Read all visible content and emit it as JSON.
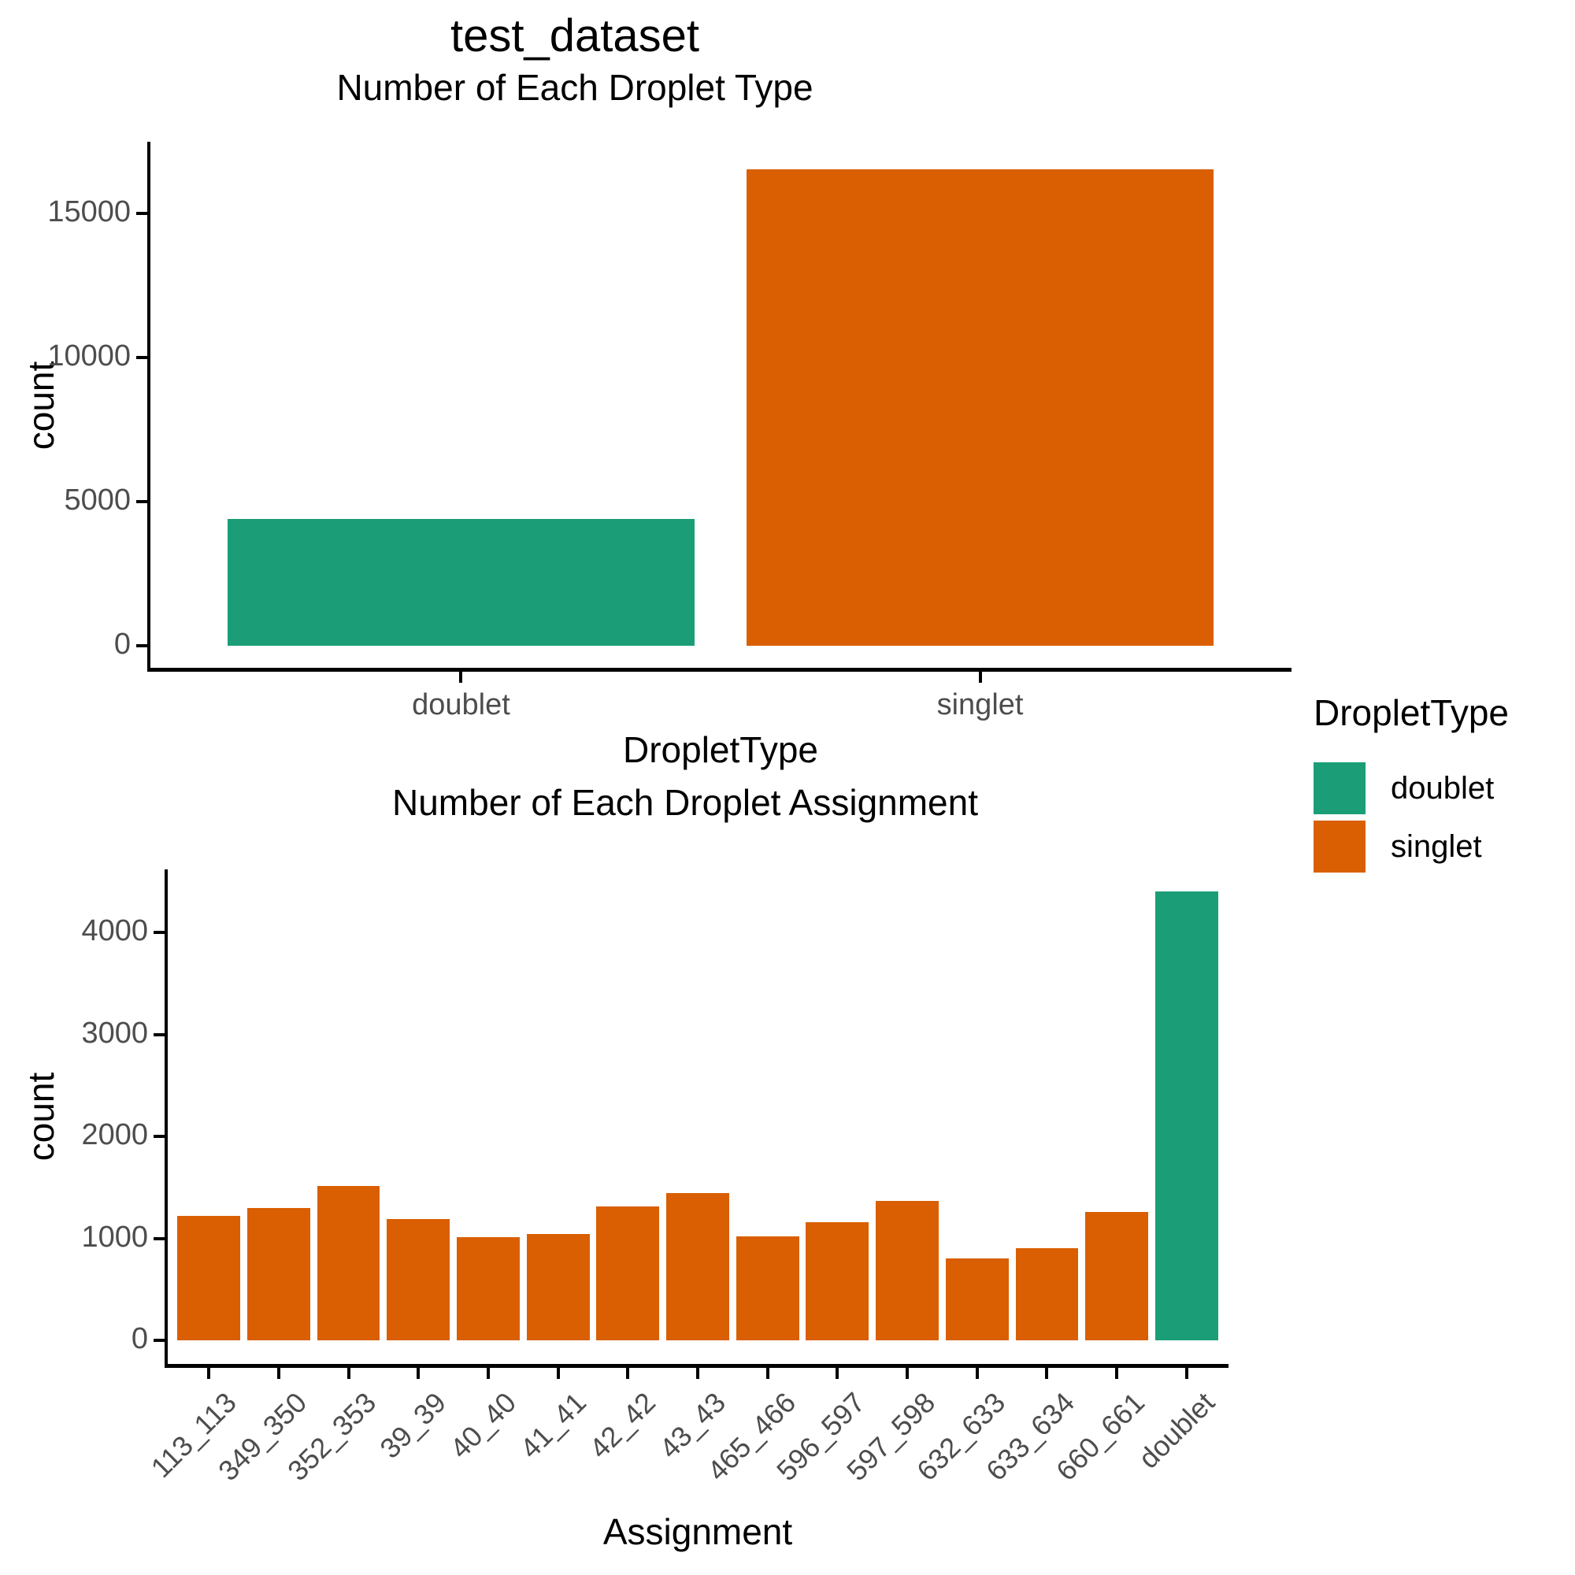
{
  "titles": {
    "main": "test_dataset"
  },
  "colors": {
    "doublet": "#1B9E77",
    "singlet": "#D95F02",
    "axis_text": "#4d4d4d",
    "axis_line": "#000000",
    "background": "#ffffff"
  },
  "legend": {
    "title": "DropletType",
    "items": [
      {
        "label": "doublet",
        "color": "#1B9E77"
      },
      {
        "label": "singlet",
        "color": "#D95F02"
      }
    ]
  },
  "chart_data": [
    {
      "type": "bar",
      "title": "Number of Each Droplet Type",
      "categories": [
        "doublet",
        "singlet"
      ],
      "values": [
        4400,
        16535
      ],
      "groups": [
        "doublet",
        "singlet"
      ],
      "xlabel": "DropletType",
      "ylabel": "count",
      "yticks": [
        0,
        5000,
        10000,
        15000
      ],
      "ylim": [
        0,
        17400
      ],
      "grid": false,
      "legend_position": "right",
      "x_label_rotation": 0
    },
    {
      "type": "bar",
      "title": "Number of Each Droplet Assignment",
      "categories": [
        "113_113",
        "349_350",
        "352_353",
        "39_39",
        "40_40",
        "41_41",
        "42_42",
        "43_43",
        "465_466",
        "596_597",
        "597_598",
        "632_633",
        "633_634",
        "660_661",
        "doublet"
      ],
      "values": [
        1220,
        1300,
        1510,
        1190,
        1010,
        1040,
        1310,
        1445,
        1020,
        1160,
        1370,
        800,
        900,
        1260,
        4400
      ],
      "groups": [
        "singlet",
        "singlet",
        "singlet",
        "singlet",
        "singlet",
        "singlet",
        "singlet",
        "singlet",
        "singlet",
        "singlet",
        "singlet",
        "singlet",
        "singlet",
        "singlet",
        "doublet"
      ],
      "xlabel": "Assignment",
      "ylabel": "count",
      "yticks": [
        0,
        1000,
        2000,
        3000,
        4000
      ],
      "ylim": [
        0,
        4620
      ],
      "grid": false,
      "legend_position": "none",
      "x_label_rotation": 45
    }
  ]
}
